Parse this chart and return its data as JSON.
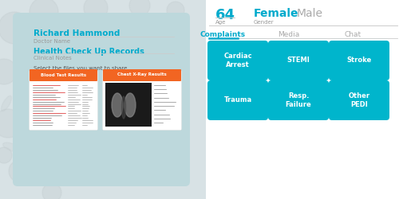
{
  "outer_bg": "#d8e2e5",
  "left_panel_color": "#bdd8dc",
  "name": "Richard Hammond",
  "name_color": "#00aacc",
  "doctor_label": "Doctor Name",
  "section_title": "Health Check Up Records",
  "section_color": "#00aacc",
  "clinical_label": "Clinical Notes",
  "share_label": "Select the files you want to share",
  "blood_title": "Blood Test Results",
  "xray_title": "Chest X-Ray Results",
  "card_header_color": "#f26522",
  "card_bg_color": "#ffffff",
  "age_value": "64",
  "age_label": "Age",
  "gender_active": "Female",
  "gender_inactive": "Male",
  "gender_label": "Gender",
  "active_tab": "Complaints",
  "inactive_tabs": [
    "Media",
    "Chat"
  ],
  "tab_active_color": "#00aacc",
  "tab_inactive_color": "#aaaaaa",
  "tab_underline_color": "#00aacc",
  "button_color": "#00b5cc",
  "button_labels": [
    [
      "Cardiac\nArrest",
      "STEMI",
      "Stroke"
    ],
    [
      "Trauma",
      "Resp.\nFailure",
      "Other\nPEDI"
    ]
  ],
  "button_text_color": "#ffffff",
  "separator_color": "#cccccc",
  "label_color": "#999999",
  "right_bg": "#ffffff",
  "icon_color": "#c5cfd2"
}
